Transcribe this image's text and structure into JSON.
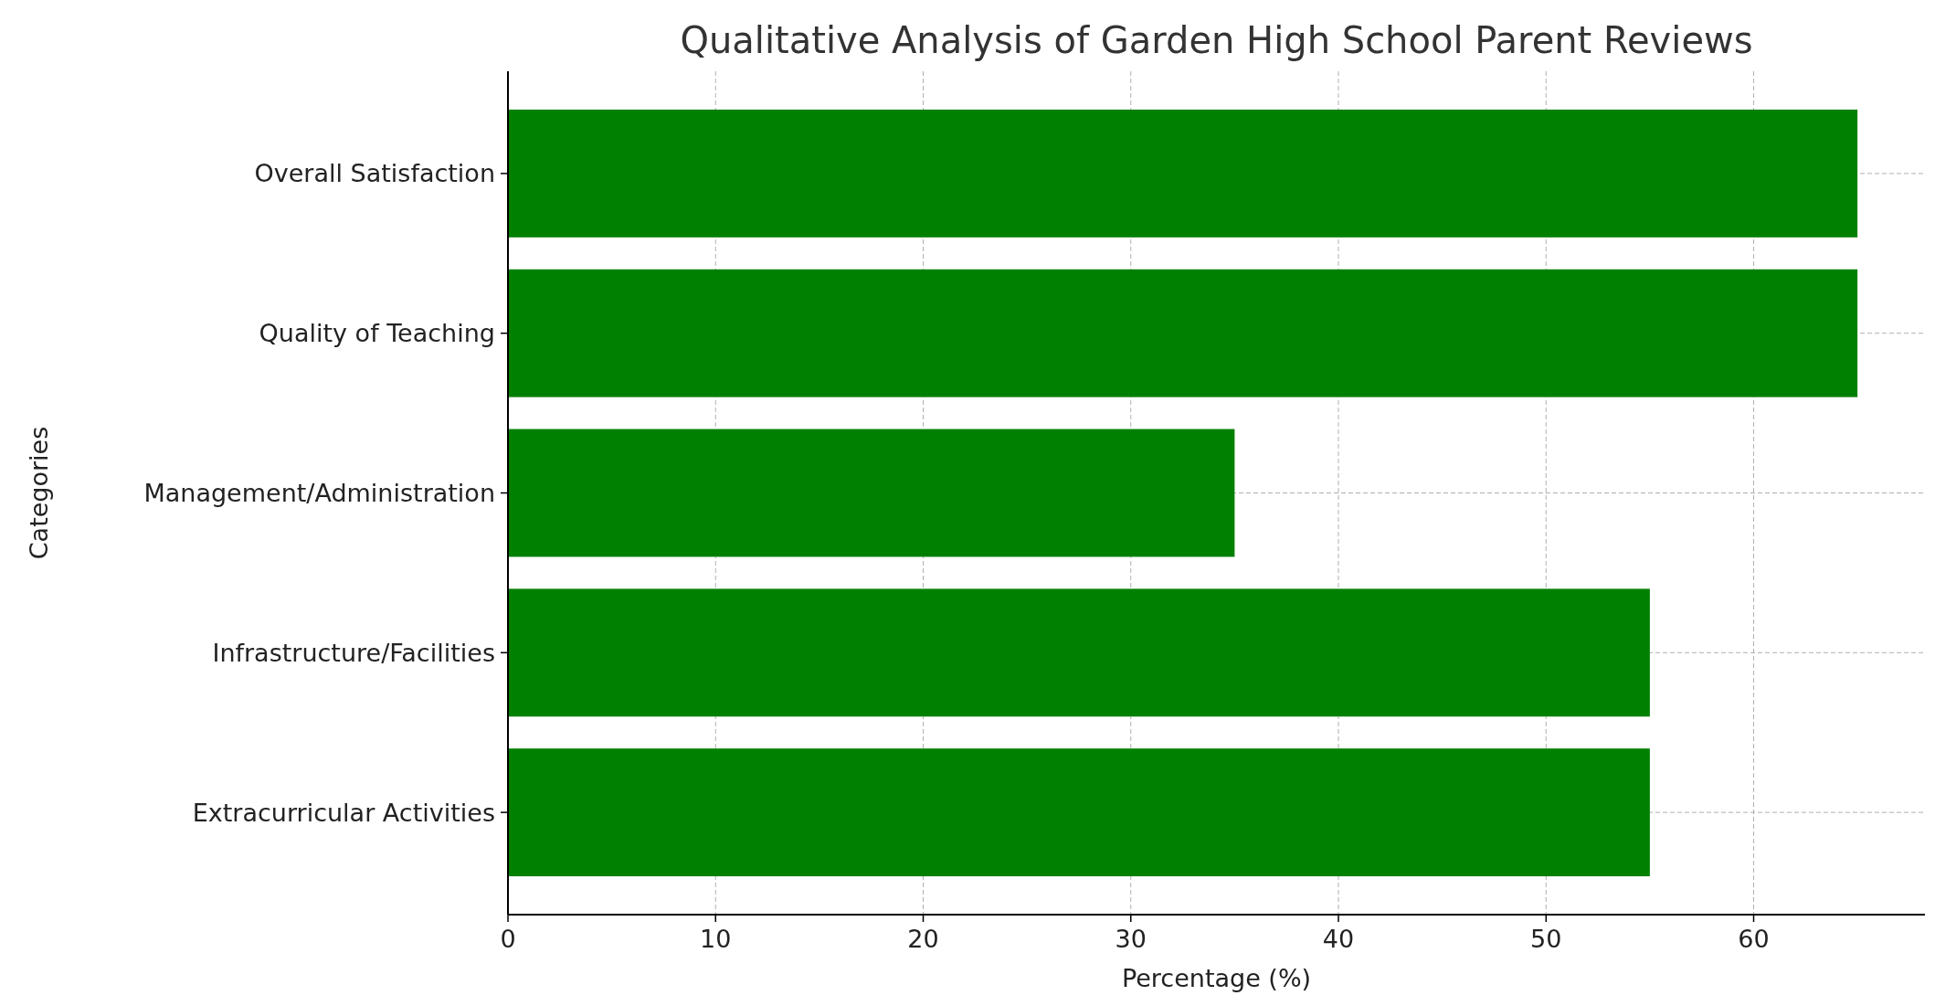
{
  "chart_data": {
    "type": "bar",
    "orientation": "horizontal",
    "title": "Qualitative Analysis of Garden High School Parent Reviews",
    "xlabel": "Percentage (%)",
    "ylabel": "Categories",
    "categories": [
      "Overall Satisfaction",
      "Quality of Teaching",
      "Management/Administration",
      "Infrastructure/Facilities",
      "Extracurricular Activities"
    ],
    "values": [
      65,
      65,
      35,
      55,
      55
    ],
    "color": "#008000",
    "xlim": [
      0,
      68.25
    ],
    "xticks": [
      0,
      10,
      20,
      30,
      40,
      50,
      60
    ],
    "grid": true
  }
}
